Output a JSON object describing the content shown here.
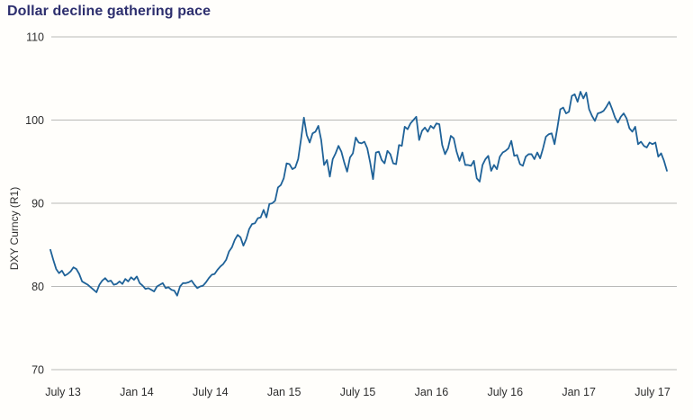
{
  "title": "Dollar decline gathering pace",
  "colors": {
    "title": "#2d2f6e",
    "line": "#1f6298",
    "grid": "#b9b9b7",
    "tick_text": "#2e2e2e",
    "background": "#fffefb"
  },
  "chart_data": {
    "type": "line",
    "title": "Dollar decline gathering pace",
    "xlabel": "",
    "ylabel": "DXY Curncy (R1)",
    "x_tick_labels": [
      "July 13",
      "Jan 14",
      "July 14",
      "Jan 15",
      "July 15",
      "Jan 16",
      "July 16",
      "Jan 17",
      "July 17"
    ],
    "y_tick_labels": [
      "110",
      "100",
      "90",
      "80",
      "70"
    ],
    "y_ticks": [
      110,
      100,
      90,
      80,
      70
    ],
    "ylim": [
      70,
      110
    ],
    "x_range": [
      "Jul 2013",
      "Jul 2017"
    ],
    "frequency": "weekly",
    "grid": "horizontal",
    "legend": "none",
    "series": [
      {
        "name": "DXY Curncy (R1)",
        "values": [
          84.4,
          83.2,
          82.1,
          81.6,
          81.9,
          81.3,
          81.5,
          81.8,
          82.3,
          82.1,
          81.5,
          80.6,
          80.4,
          80.2,
          79.9,
          79.6,
          79.3,
          80.2,
          80.7,
          81.0,
          80.6,
          80.7,
          80.2,
          80.3,
          80.6,
          80.3,
          80.9,
          80.6,
          81.1,
          80.8,
          81.2,
          80.4,
          80.1,
          79.7,
          79.8,
          79.6,
          79.4,
          80.0,
          80.2,
          80.4,
          79.8,
          79.9,
          79.6,
          79.5,
          78.9,
          80.0,
          80.4,
          80.4,
          80.5,
          80.7,
          80.2,
          79.8,
          80.0,
          80.1,
          80.5,
          81.0,
          81.4,
          81.5,
          82.0,
          82.4,
          82.7,
          83.2,
          84.2,
          84.7,
          85.6,
          86.2,
          85.9,
          84.9,
          85.7,
          86.9,
          87.5,
          87.6,
          88.2,
          88.3,
          89.2,
          88.3,
          89.9,
          90.0,
          90.3,
          91.9,
          92.2,
          93.0,
          94.8,
          94.7,
          94.1,
          94.3,
          95.3,
          97.7,
          100.3,
          98.2,
          97.3,
          98.4,
          98.6,
          99.3,
          97.6,
          94.6,
          95.2,
          93.2,
          95.3,
          96.0,
          96.9,
          96.2,
          94.9,
          93.8,
          95.5,
          96.0,
          97.9,
          97.3,
          97.2,
          97.4,
          96.6,
          94.9,
          92.9,
          96.1,
          96.2,
          95.2,
          94.8,
          96.3,
          95.9,
          94.8,
          94.7,
          97.0,
          96.9,
          99.2,
          98.9,
          99.6,
          100.0,
          100.4,
          97.6,
          98.7,
          99.1,
          98.6,
          99.3,
          99.0,
          99.6,
          99.5,
          97.0,
          95.9,
          96.6,
          98.1,
          97.8,
          96.2,
          95.1,
          96.1,
          94.6,
          94.6,
          94.5,
          95.1,
          93.0,
          92.6,
          94.6,
          95.3,
          95.7,
          93.9,
          94.6,
          94.1,
          95.6,
          96.1,
          96.3,
          96.6,
          97.5,
          95.7,
          95.8,
          94.7,
          94.5,
          95.6,
          95.9,
          95.9,
          95.3,
          96.1,
          95.4,
          96.6,
          98.0,
          98.3,
          98.4,
          97.1,
          99.1,
          101.3,
          101.5,
          100.8,
          101.0,
          102.9,
          103.1,
          102.2,
          103.4,
          102.6,
          103.3,
          101.3,
          100.5,
          99.9,
          100.8,
          100.9,
          101.1,
          101.6,
          102.2,
          101.3,
          100.3,
          99.7,
          100.4,
          100.8,
          100.2,
          99.0,
          98.6,
          99.2,
          97.1,
          97.4,
          96.9,
          96.7,
          97.3,
          97.1,
          97.3,
          95.6,
          96.0,
          95.1,
          93.9
        ]
      }
    ]
  }
}
